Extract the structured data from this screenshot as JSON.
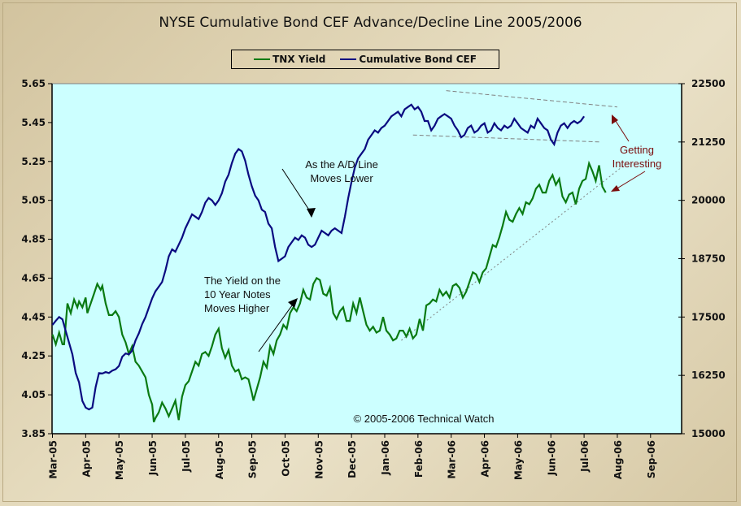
{
  "chart_data": {
    "type": "line",
    "title": "NYSE Cumulative Bond CEF Advance/Decline Line 2005/2006",
    "xlabel": "",
    "ylabel_left": "",
    "ylabel_right": "",
    "legend": {
      "placement": "top-center",
      "entries": [
        {
          "name": "TNX Yield",
          "color": "#0a7a12"
        },
        {
          "name": "Cumulative Bond CEF",
          "color": "#0a0a80"
        }
      ]
    },
    "x_categories": [
      "Mar-05",
      "Apr-05",
      "May-05",
      "Jun-05",
      "Jul-05",
      "Aug-05",
      "Sep-05",
      "Oct-05",
      "Nov-05",
      "Dec-05",
      "Jan-06",
      "Feb-06",
      "Mar-06",
      "Apr-06",
      "May-06",
      "Jun-06",
      "Jul-06",
      "Aug-06",
      "Sep-06"
    ],
    "y_left": {
      "ticks": [
        "5.65",
        "5.45",
        "5.25",
        "5.05",
        "4.85",
        "4.65",
        "4.45",
        "4.25",
        "4.05",
        "3.85"
      ],
      "range": [
        3.85,
        5.65
      ]
    },
    "y_right": {
      "ticks": [
        "22500",
        "21250",
        "20000",
        "18750",
        "17500",
        "16250",
        "15000"
      ],
      "range": [
        15000,
        22500
      ]
    },
    "grid": false,
    "series": [
      {
        "name": "TNX Yield",
        "axis": "left",
        "color": "#0a7a12",
        "x_months": [
          0,
          0.1,
          0.2,
          0.3,
          0.35,
          0.45,
          0.55,
          0.65,
          0.75,
          0.8,
          0.9,
          1.0,
          1.05,
          1.15,
          1.25,
          1.35,
          1.45,
          1.5,
          1.6,
          1.7,
          1.8,
          1.9,
          2.0,
          2.1,
          2.2,
          2.3,
          2.4,
          2.5,
          2.6,
          2.7,
          2.8,
          2.9,
          3.0,
          3.05,
          3.1,
          3.2,
          3.3,
          3.4,
          3.5,
          3.6,
          3.7,
          3.8,
          3.9,
          4.0,
          4.1,
          4.2,
          4.3,
          4.4,
          4.5,
          4.6,
          4.7,
          4.8,
          4.9,
          5.0,
          5.1,
          5.2,
          5.3,
          5.4,
          5.5,
          5.6,
          5.7,
          5.8,
          5.9,
          6.0,
          6.05,
          6.15,
          6.25,
          6.35,
          6.45,
          6.55,
          6.65,
          6.75,
          6.85,
          6.95,
          7.05,
          7.15,
          7.25,
          7.35,
          7.45,
          7.55,
          7.65,
          7.75,
          7.85,
          7.95,
          8.05,
          8.15,
          8.25,
          8.35,
          8.45,
          8.55,
          8.65,
          8.75,
          8.85,
          8.95,
          9.05,
          9.15,
          9.25,
          9.35,
          9.45,
          9.55,
          9.65,
          9.75,
          9.85,
          9.95,
          10.05,
          10.15,
          10.25,
          10.35,
          10.45,
          10.55,
          10.65,
          10.75,
          10.85,
          10.95,
          11.05,
          11.15,
          11.25,
          11.35,
          11.45,
          11.55,
          11.65,
          11.75,
          11.85,
          11.95,
          12.05,
          12.15,
          12.25,
          12.35,
          12.45,
          12.55,
          12.65,
          12.75,
          12.85,
          12.95,
          13.05,
          13.15,
          13.25,
          13.35,
          13.45,
          13.55,
          13.65,
          13.75,
          13.85,
          13.95,
          14.05,
          14.15,
          14.25,
          14.35,
          14.45,
          14.55,
          14.65,
          14.75,
          14.85,
          14.95,
          15.05,
          15.15,
          15.25,
          15.35,
          15.45,
          15.55,
          15.65,
          15.75,
          15.85,
          15.95,
          16.05,
          16.15,
          16.25,
          16.35,
          16.45,
          16.55,
          16.65
        ],
        "values": [
          4.36,
          4.31,
          4.37,
          4.31,
          4.31,
          4.52,
          4.47,
          4.54,
          4.5,
          4.53,
          4.5,
          4.55,
          4.47,
          4.52,
          4.57,
          4.62,
          4.59,
          4.61,
          4.52,
          4.46,
          4.46,
          4.48,
          4.45,
          4.36,
          4.32,
          4.26,
          4.3,
          4.22,
          4.2,
          4.17,
          4.14,
          4.05,
          4.0,
          3.91,
          3.93,
          3.96,
          4.01,
          3.98,
          3.94,
          3.98,
          4.02,
          3.92,
          4.04,
          4.1,
          4.12,
          4.17,
          4.22,
          4.2,
          4.26,
          4.27,
          4.25,
          4.3,
          4.36,
          4.39,
          4.29,
          4.24,
          4.28,
          4.2,
          4.17,
          4.18,
          4.13,
          4.14,
          4.13,
          4.06,
          4.02,
          4.08,
          4.14,
          4.22,
          4.19,
          4.3,
          4.26,
          4.33,
          4.36,
          4.41,
          4.39,
          4.47,
          4.5,
          4.48,
          4.52,
          4.59,
          4.55,
          4.54,
          4.62,
          4.65,
          4.64,
          4.57,
          4.56,
          4.6,
          4.47,
          4.44,
          4.48,
          4.5,
          4.43,
          4.43,
          4.52,
          4.47,
          4.55,
          4.48,
          4.41,
          4.38,
          4.4,
          4.37,
          4.38,
          4.45,
          4.38,
          4.36,
          4.33,
          4.34,
          4.38,
          4.38,
          4.35,
          4.39,
          4.34,
          4.36,
          4.44,
          4.38,
          4.51,
          4.52,
          4.54,
          4.53,
          4.59,
          4.56,
          4.58,
          4.55,
          4.61,
          4.62,
          4.6,
          4.55,
          4.58,
          4.63,
          4.68,
          4.67,
          4.63,
          4.68,
          4.7,
          4.76,
          4.82,
          4.81,
          4.86,
          4.92,
          4.99,
          4.95,
          4.94,
          4.98,
          5.01,
          4.98,
          5.04,
          5.03,
          5.06,
          5.11,
          5.13,
          5.09,
          5.09,
          5.15,
          5.18,
          5.13,
          5.16,
          5.07,
          5.04,
          5.08,
          5.09,
          5.03,
          5.11,
          5.15,
          5.16,
          5.24,
          5.2,
          5.15,
          5.23,
          5.12,
          5.09,
          5.07,
          5.14,
          5.05,
          5.03
        ]
      },
      {
        "name": "Cumulative Bond CEF",
        "axis": "right",
        "color": "#0a0a80",
        "x_months": [
          0,
          0.1,
          0.2,
          0.3,
          0.4,
          0.5,
          0.6,
          0.7,
          0.8,
          0.9,
          1.0,
          1.1,
          1.2,
          1.3,
          1.4,
          1.5,
          1.6,
          1.7,
          1.8,
          1.9,
          2.0,
          2.1,
          2.2,
          2.3,
          2.4,
          2.5,
          2.6,
          2.7,
          2.8,
          2.9,
          3.0,
          3.1,
          3.2,
          3.3,
          3.4,
          3.5,
          3.6,
          3.7,
          3.8,
          3.9,
          4.0,
          4.1,
          4.2,
          4.3,
          4.4,
          4.5,
          4.6,
          4.7,
          4.8,
          4.9,
          5.0,
          5.1,
          5.2,
          5.3,
          5.4,
          5.5,
          5.6,
          5.7,
          5.8,
          5.9,
          6.0,
          6.1,
          6.2,
          6.3,
          6.4,
          6.5,
          6.6,
          6.7,
          6.8,
          6.9,
          7.0,
          7.1,
          7.2,
          7.3,
          7.4,
          7.5,
          7.6,
          7.7,
          7.8,
          7.9,
          8.0,
          8.1,
          8.2,
          8.3,
          8.4,
          8.5,
          8.6,
          8.7,
          8.8,
          8.9,
          9.0,
          9.1,
          9.2,
          9.3,
          9.4,
          9.5,
          9.6,
          9.7,
          9.8,
          9.9,
          10.0,
          10.1,
          10.2,
          10.3,
          10.4,
          10.5,
          10.6,
          10.7,
          10.8,
          10.9,
          11.0,
          11.1,
          11.2,
          11.3,
          11.4,
          11.5,
          11.6,
          11.7,
          11.8,
          11.9,
          12.0,
          12.1,
          12.2,
          12.3,
          12.4,
          12.5,
          12.6,
          12.7,
          12.8,
          12.9,
          13.0,
          13.1,
          13.2,
          13.3,
          13.4,
          13.5,
          13.6,
          13.7,
          13.8,
          13.9,
          14.0,
          14.1,
          14.2,
          14.3,
          14.4,
          14.5,
          14.6,
          14.7,
          14.8,
          14.9,
          15.0,
          15.1,
          15.2,
          15.3,
          15.4,
          15.5,
          15.6,
          15.7,
          15.8,
          15.9,
          16.0,
          16.1,
          16.2,
          16.3,
          16.4,
          16.5,
          16.6,
          16.7
        ],
        "values": [
          17330,
          17420,
          17500,
          17450,
          17200,
          16950,
          16700,
          16300,
          16100,
          15700,
          15560,
          15520,
          15560,
          16000,
          16300,
          16290,
          16320,
          16300,
          16350,
          16380,
          16450,
          16650,
          16720,
          16700,
          16780,
          17000,
          17150,
          17350,
          17500,
          17700,
          17900,
          18050,
          18150,
          18250,
          18500,
          18800,
          18950,
          18900,
          19050,
          19200,
          19400,
          19550,
          19700,
          19650,
          19600,
          19750,
          19950,
          20050,
          20000,
          19900,
          20000,
          20150,
          20400,
          20550,
          20800,
          21000,
          21100,
          21050,
          20850,
          20550,
          20300,
          20100,
          20000,
          19800,
          19750,
          19500,
          19400,
          19000,
          18700,
          18750,
          18800,
          19000,
          19100,
          19200,
          19150,
          19250,
          19200,
          19050,
          19000,
          19050,
          19200,
          19350,
          19300,
          19250,
          19350,
          19400,
          19350,
          19300,
          19650,
          20050,
          20400,
          20700,
          20900,
          21000,
          21100,
          21300,
          21400,
          21500,
          21450,
          21550,
          21600,
          21700,
          21800,
          21850,
          21900,
          21800,
          21950,
          22000,
          22050,
          21950,
          22000,
          21900,
          21700,
          21700,
          21500,
          21600,
          21750,
          21800,
          21850,
          21800,
          21750,
          21600,
          21500,
          21350,
          21400,
          21550,
          21600,
          21450,
          21500,
          21600,
          21650,
          21450,
          21500,
          21650,
          21550,
          21500,
          21600,
          21550,
          21600,
          21750,
          21650,
          21550,
          21500,
          21450,
          21600,
          21550,
          21750,
          21650,
          21550,
          21500,
          21300,
          21200,
          21450,
          21600,
          21650,
          21550,
          21650,
          21700,
          21650,
          21700,
          21800
        ]
      }
    ],
    "trendlines": [
      {
        "series": "Cumulative Bond CEF",
        "style": "dashed",
        "from": {
          "x_month": 11.85,
          "value": 22350
        },
        "to": {
          "x_month": 17.0,
          "value": 22000
        }
      },
      {
        "series": "Cumulative Bond CEF",
        "style": "dashed",
        "from": {
          "x_month": 10.85,
          "value": 21400
        },
        "to": {
          "x_month": 16.5,
          "value": 21250
        }
      },
      {
        "series": "TNX Yield",
        "style": "dotted",
        "from": {
          "x_month": 10.5,
          "value": 4.33
        },
        "to": {
          "x_month": 17.2,
          "value": 5.23
        }
      }
    ],
    "annotations": [
      {
        "text_lines": [
          "As the A/D Line",
          "Moves Lower"
        ]
      },
      {
        "text_lines": [
          "The Yield on the",
          "10 Year Notes",
          "Moves Higher"
        ]
      },
      {
        "text_lines": [
          "Getting",
          "Interesting"
        ],
        "color": "#7a0c0c"
      },
      {
        "text_lines": [
          "© 2005-2006 Technical Watch"
        ]
      }
    ]
  }
}
